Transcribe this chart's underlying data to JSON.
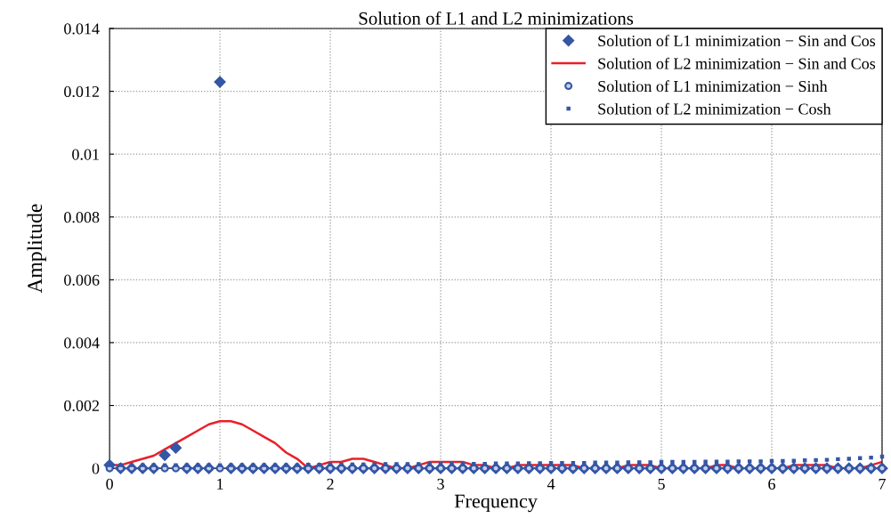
{
  "chart_data": {
    "type": "scatter",
    "title": "Solution of L1 and L2 minimizations",
    "xlabel": "Frequency",
    "ylabel": "Amplitude",
    "xlim": [
      0,
      7
    ],
    "ylim": [
      0,
      0.014
    ],
    "xticks": [
      0,
      1,
      2,
      3,
      4,
      5,
      6,
      7
    ],
    "yticks": [
      0,
      0.002,
      0.004,
      0.006,
      0.008,
      0.01,
      0.012,
      0.014
    ],
    "grid": true,
    "legend": "top right",
    "x": [
      0,
      0.1,
      0.2,
      0.3,
      0.4,
      0.5,
      0.6,
      0.7,
      0.8,
      0.9,
      1,
      1.1,
      1.2,
      1.3,
      1.4,
      1.5,
      1.6,
      1.7,
      1.8,
      1.9,
      2,
      2.1,
      2.2,
      2.3,
      2.4,
      2.5,
      2.6,
      2.7,
      2.8,
      2.9,
      3,
      3.1,
      3.2,
      3.3,
      3.4,
      3.5,
      3.6,
      3.7,
      3.8,
      3.9,
      4,
      4.1,
      4.2,
      4.3,
      4.4,
      4.5,
      4.6,
      4.7,
      4.8,
      4.9,
      5,
      5.1,
      5.2,
      5.3,
      5.4,
      5.5,
      5.6,
      5.7,
      5.8,
      5.9,
      6,
      6.1,
      6.2,
      6.3,
      6.4,
      6.5,
      6.6,
      6.7,
      6.8,
      6.9,
      7
    ],
    "series": [
      {
        "name": "Solution of L1 minimization − Sin and Cos",
        "type": "scatter",
        "marker": "diamond",
        "color": "#3456a6",
        "values": [
          0.0001,
          0,
          0,
          0,
          0,
          0.00042,
          0.00065,
          0,
          0,
          0,
          0.0123,
          0,
          0,
          0,
          0,
          0,
          0,
          0,
          0,
          0,
          0,
          0,
          0,
          0,
          0,
          0,
          0,
          0,
          0,
          0,
          0,
          0,
          0,
          0,
          0,
          0,
          0,
          0,
          0,
          0,
          0,
          0,
          0,
          0,
          0,
          0,
          0,
          0,
          0,
          0,
          0,
          0,
          0,
          0,
          0,
          0,
          0,
          0,
          0,
          0,
          0,
          0,
          0,
          0,
          0,
          0,
          0,
          0,
          0,
          0,
          0
        ]
      },
      {
        "name": "Solution of L2 minimization − Sin and Cos",
        "type": "line",
        "marker": "none",
        "line_style": "solid",
        "color": "#e8202a",
        "values": [
          0.0001,
          0.0001,
          0.0002,
          0.0003,
          0.0004,
          0.0006,
          0.0008,
          0.001,
          0.0012,
          0.0014,
          0.0015,
          0.0015,
          0.0014,
          0.0012,
          0.001,
          0.0008,
          0.0005,
          0.0003,
          0,
          0.0001,
          0.0002,
          0.0002,
          0.0003,
          0.0003,
          0.0002,
          0.0001,
          0,
          0,
          0.0001,
          0.0002,
          0.0002,
          0.0002,
          0.0002,
          0.0001,
          0.0001,
          0,
          0,
          0.0001,
          0.0001,
          0.0001,
          0.0001,
          0.0001,
          0.0001,
          0,
          0,
          0,
          0,
          0.0001,
          0.0001,
          0.0001,
          0,
          0,
          0,
          0,
          0,
          0.0001,
          0.0001,
          0,
          0,
          0,
          0,
          0,
          0.0001,
          0.0001,
          0.0001,
          0.0001,
          0,
          0,
          0,
          0.0001,
          0.0002
        ]
      },
      {
        "name": "Solution of L1 minimization − Sinh",
        "type": "scatter",
        "marker": "circle",
        "color": "#3456a6",
        "values": [
          0,
          0,
          0,
          0,
          0,
          0,
          0,
          0,
          0,
          0,
          0,
          0,
          0,
          0,
          0,
          0,
          0,
          0,
          0,
          0,
          0,
          0,
          0,
          0,
          0,
          0,
          0,
          0,
          0,
          0,
          0,
          0,
          0,
          0,
          0,
          0,
          0,
          0,
          0,
          0,
          0,
          0,
          0,
          0,
          0,
          0,
          0,
          0,
          0,
          0,
          0,
          0,
          0,
          0,
          0,
          0,
          0,
          0,
          0,
          0,
          0,
          0,
          0,
          0,
          0,
          0,
          0,
          0,
          0,
          0,
          0
        ]
      },
      {
        "name": "Solution of L2 minimization − Cosh",
        "type": "scatter",
        "marker": "square",
        "color": "#3456a6",
        "values": [
          0.0001,
          0.0001,
          0.0001,
          0.0001,
          0.0001,
          0.0001,
          0.0001,
          0.0001,
          0.0001,
          0.0001,
          0.0001,
          0.0001,
          0.0001,
          0.0001,
          0.0001,
          0.0001,
          0.0001,
          0.0001,
          0.00011,
          0.00011,
          0.00012,
          0.00012,
          0.00012,
          0.00012,
          0.00012,
          0.00013,
          0.00013,
          0.00013,
          0.00013,
          0.00013,
          0.00014,
          0.00014,
          0.00014,
          0.00014,
          0.00014,
          0.00015,
          0.00015,
          0.00015,
          0.00016,
          0.00016,
          0.00017,
          0.00017,
          0.00017,
          0.00017,
          0.00018,
          0.00018,
          0.00018,
          0.00019,
          0.00019,
          0.00019,
          0.0002,
          0.0002,
          0.0002,
          0.0002,
          0.00021,
          0.00021,
          0.00021,
          0.00022,
          0.00022,
          0.00022,
          0.00023,
          0.00023,
          0.00024,
          0.00025,
          0.00026,
          0.00027,
          0.00029,
          0.0003,
          0.00032,
          0.00034,
          0.00037
        ]
      }
    ]
  }
}
